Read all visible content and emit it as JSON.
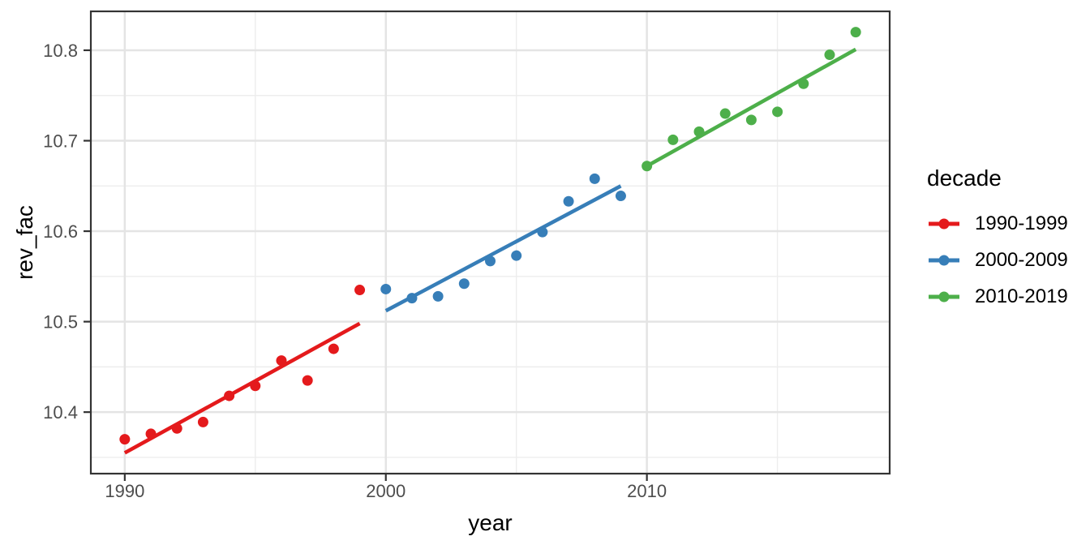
{
  "figure": {
    "background": "#FFFFFF"
  },
  "chart_data": {
    "type": "scatter",
    "title": "",
    "xlabel": "year",
    "ylabel": "rev_fac",
    "xlim": [
      1988.7,
      2019.3
    ],
    "ylim": [
      10.332,
      10.843
    ],
    "x_major_ticks": [
      1990,
      2000,
      2010
    ],
    "x_minor_ticks": [
      1995,
      2005,
      2015
    ],
    "y_major_ticks": [
      10.4,
      10.5,
      10.6,
      10.7,
      10.8
    ],
    "y_minor_ticks": [
      10.35,
      10.45,
      10.55,
      10.65,
      10.75
    ],
    "grid": "major-and-minor",
    "legend": {
      "title": "decade",
      "position": "right"
    },
    "series": [
      {
        "name": "1990-1999",
        "color": "#E41A1C",
        "x": [
          1990,
          1991,
          1992,
          1993,
          1994,
          1995,
          1996,
          1997,
          1998,
          1999
        ],
        "y": [
          10.37,
          10.376,
          10.382,
          10.389,
          10.418,
          10.429,
          10.457,
          10.435,
          10.47,
          10.535
        ],
        "trend": {
          "x": [
            1990,
            1999
          ],
          "y": [
            10.355,
            10.498
          ]
        }
      },
      {
        "name": "2000-2009",
        "color": "#377EB8",
        "x": [
          2000,
          2001,
          2002,
          2003,
          2004,
          2005,
          2006,
          2007,
          2008,
          2009
        ],
        "y": [
          10.536,
          10.526,
          10.528,
          10.542,
          10.567,
          10.573,
          10.599,
          10.633,
          10.658,
          10.639
        ],
        "trend": {
          "x": [
            2000,
            2009
          ],
          "y": [
            10.512,
            10.65
          ]
        }
      },
      {
        "name": "2010-2019",
        "color": "#4DAF4A",
        "x": [
          2010,
          2011,
          2012,
          2013,
          2014,
          2015,
          2016,
          2017,
          2018
        ],
        "y": [
          10.672,
          10.701,
          10.71,
          10.73,
          10.723,
          10.732,
          10.763,
          10.795,
          10.82
        ],
        "trend": {
          "x": [
            2010,
            2018
          ],
          "y": [
            10.672,
            10.801
          ]
        }
      }
    ],
    "theme": {
      "panel_background": "#FFFFFF",
      "panel_border_color": "#333333",
      "grid_major_color": "#E4E4E4",
      "grid_minor_color": "#EDEDED",
      "tick_color": "#333333",
      "tick_label_color": "#4D4D4D",
      "axis_title_color": "#000000"
    }
  }
}
